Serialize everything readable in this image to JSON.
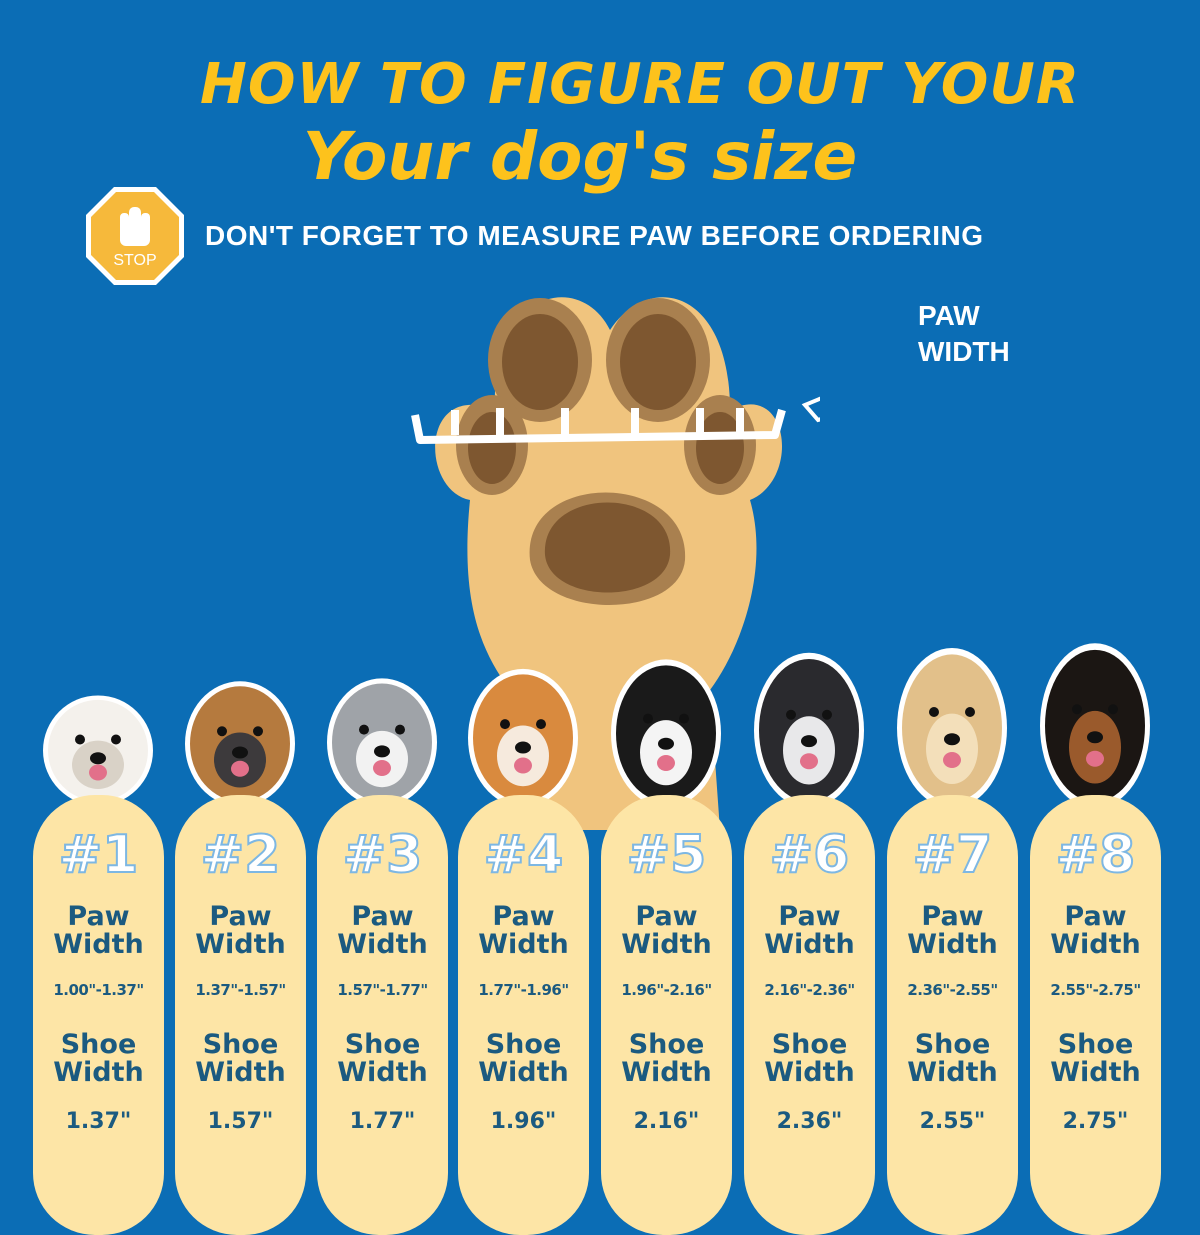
{
  "header": {
    "title_line1": "HOW TO FIGURE OUT YOUR",
    "title_line2": "Your dog's size",
    "subtitle": "DON'T FORGET TO MEASURE PAW BEFORE ORDERING",
    "stop_sign_text": "STOP"
  },
  "diagram": {
    "label": "PAW WIDTH",
    "icons": [
      "paw-icon",
      "ruler-icon",
      "curved-arrow-icon"
    ]
  },
  "colors": {
    "background": "#0b6db5",
    "title": "#fdc21c",
    "card": "#fde5a6",
    "card_text": "#1b5a80"
  },
  "sizes": [
    {
      "number": "#1",
      "paw_label": "Paw Width",
      "paw_range": "1.00\"-1.37\"",
      "shoe_label": "Shoe Width",
      "shoe_width": "1.37\""
    },
    {
      "number": "#2",
      "paw_label": "Paw Width",
      "paw_range": "1.37\"-1.57\"",
      "shoe_label": "Shoe Width",
      "shoe_width": "1.57\""
    },
    {
      "number": "#3",
      "paw_label": "Paw Width",
      "paw_range": "1.57\"-1.77\"",
      "shoe_label": "Shoe Width",
      "shoe_width": "1.77\""
    },
    {
      "number": "#4",
      "paw_label": "Paw Width",
      "paw_range": "1.77\"-1.96\"",
      "shoe_label": "Shoe Width",
      "shoe_width": "1.96\""
    },
    {
      "number": "#5",
      "paw_label": "Paw Width",
      "paw_range": "1.96\"-2.16\"",
      "shoe_label": "Shoe Width",
      "shoe_width": "2.16\""
    },
    {
      "number": "#6",
      "paw_label": "Paw Width",
      "paw_range": "2.16\"-2.36\"",
      "shoe_label": "Shoe Width",
      "shoe_width": "2.36\""
    },
    {
      "number": "#7",
      "paw_label": "Paw Width",
      "paw_range": "2.36\"-2.55\"",
      "shoe_label": "Shoe Width",
      "shoe_width": "2.55\""
    },
    {
      "number": "#8",
      "paw_label": "Paw Width",
      "paw_range": "2.55\"-2.75\"",
      "shoe_label": "Shoe Width",
      "shoe_width": "2.75\""
    }
  ]
}
